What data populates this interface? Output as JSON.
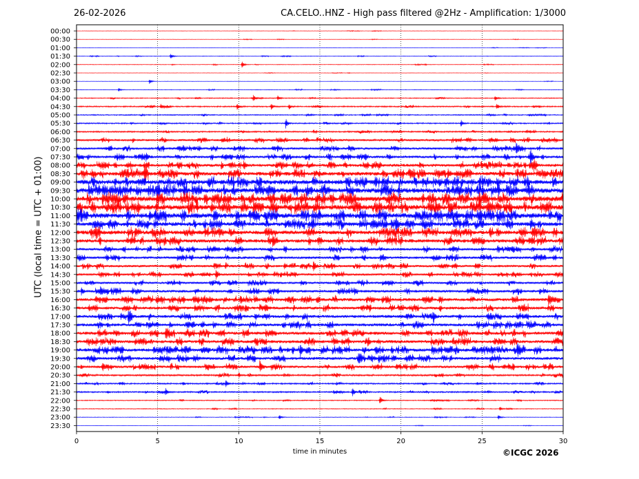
{
  "header": {
    "date": "26-02-2026",
    "title": "CA.CELO..HNZ - High pass filtered @2Hz - Amplification: 1/3000"
  },
  "footer": {
    "copyright": "©ICGC 2026"
  },
  "colors": {
    "trace_a": "#ff0000",
    "trace_b": "#0000ff",
    "frame": "#000000",
    "grid": "#000000"
  },
  "chart_data": {
    "type": "line",
    "chart_kind": "helicorder",
    "xlabel": "time in minutes",
    "ylabel": "UTC (local time = UTC + 01:00)",
    "xlim": [
      0,
      30
    ],
    "xticks": [
      0,
      5,
      10,
      15,
      20,
      25,
      30
    ],
    "x_gridlines": [
      5,
      10,
      15,
      20,
      25
    ],
    "grid": "vertical dotted at x ticks",
    "row_color_cycle": [
      "#ff0000",
      "#ff0000",
      "#0000ff",
      "#0000ff"
    ],
    "rows": [
      "00:00",
      "00:30",
      "01:00",
      "01:30",
      "02:00",
      "02:30",
      "03:00",
      "03:30",
      "04:00",
      "04:30",
      "05:00",
      "05:30",
      "06:00",
      "06:30",
      "07:00",
      "07:30",
      "08:00",
      "08:30",
      "09:00",
      "09:30",
      "10:00",
      "10:30",
      "11:00",
      "11:30",
      "12:00",
      "12:30",
      "13:00",
      "13:30",
      "14:00",
      "14:30",
      "15:00",
      "15:30",
      "16:00",
      "16:30",
      "17:00",
      "17:30",
      "18:00",
      "18:30",
      "19:00",
      "19:30",
      "20:00",
      "20:30",
      "21:00",
      "21:30",
      "22:00",
      "22:30",
      "23:00",
      "23:30"
    ],
    "noise_level": [
      0.2,
      0.2,
      0.2,
      0.3,
      0.3,
      0.2,
      0.2,
      0.3,
      0.5,
      0.7,
      0.6,
      0.7,
      0.8,
      1.2,
      1.3,
      1.5,
      1.7,
      2.2,
      2.6,
      2.8,
      2.9,
      2.8,
      2.9,
      2.3,
      2.3,
      2.0,
      1.5,
      1.5,
      1.4,
      1.3,
      1.3,
      1.5,
      1.8,
      1.7,
      1.7,
      1.7,
      1.8,
      1.8,
      1.9,
      1.7,
      1.5,
      1.0,
      0.8,
      0.8,
      0.5,
      0.4,
      0.3,
      0.2
    ],
    "events": [
      {
        "row": "01:30",
        "minute": 5.8,
        "amplitude": 4
      },
      {
        "row": "02:00",
        "minute": 10.2,
        "amplitude": 5
      },
      {
        "row": "03:00",
        "minute": 4.5,
        "amplitude": 4
      },
      {
        "row": "03:30",
        "minute": 2.6,
        "amplitude": 3
      },
      {
        "row": "04:00",
        "minute": 10.9,
        "amplitude": 4
      },
      {
        "row": "04:00",
        "minute": 12.4,
        "amplitude": 4
      },
      {
        "row": "04:00",
        "minute": 25.8,
        "amplitude": 4
      },
      {
        "row": "04:30",
        "minute": 5.2,
        "amplitude": 4
      },
      {
        "row": "04:30",
        "minute": 9.9,
        "amplitude": 5
      },
      {
        "row": "04:30",
        "minute": 12.0,
        "amplitude": 5
      },
      {
        "row": "04:30",
        "minute": 13.1,
        "amplitude": 4
      },
      {
        "row": "04:30",
        "minute": 25.9,
        "amplitude": 5
      },
      {
        "row": "05:30",
        "minute": 12.9,
        "amplitude": 8
      },
      {
        "row": "05:30",
        "minute": 23.7,
        "amplitude": 5
      },
      {
        "row": "07:00",
        "minute": 27.1,
        "amplitude": 6
      },
      {
        "row": "07:30",
        "minute": 4.3,
        "amplitude": 6
      },
      {
        "row": "07:30",
        "minute": 28.0,
        "amplitude": 14
      },
      {
        "row": "08:00",
        "minute": 10.3,
        "amplitude": 7
      },
      {
        "row": "08:00",
        "minute": 28.2,
        "amplitude": 8
      },
      {
        "row": "08:30",
        "minute": 4.2,
        "amplitude": 14
      },
      {
        "row": "08:30",
        "minute": 22.9,
        "amplitude": 6
      },
      {
        "row": "09:30",
        "minute": 5.0,
        "amplitude": 7
      },
      {
        "row": "10:30",
        "minute": 3.8,
        "amplitude": 6
      },
      {
        "row": "11:00",
        "minute": 4.5,
        "amplitude": 7
      },
      {
        "row": "11:30",
        "minute": 19.7,
        "amplitude": 10
      },
      {
        "row": "12:00",
        "minute": 1.2,
        "amplitude": 7
      },
      {
        "row": "12:00",
        "minute": 28.1,
        "amplitude": 8
      },
      {
        "row": "12:30",
        "minute": 12.1,
        "amplitude": 6
      },
      {
        "row": "14:00",
        "minute": 14.6,
        "amplitude": 9
      },
      {
        "row": "14:30",
        "minute": 8.6,
        "amplitude": 9
      },
      {
        "row": "15:30",
        "minute": 0.3,
        "amplitude": 6
      },
      {
        "row": "15:30",
        "minute": 1.5,
        "amplitude": 7
      },
      {
        "row": "16:00",
        "minute": 29.1,
        "amplitude": 8
      },
      {
        "row": "17:00",
        "minute": 3.2,
        "amplitude": 10
      },
      {
        "row": "17:00",
        "minute": 22.0,
        "amplitude": 7
      },
      {
        "row": "18:00",
        "minute": 5.5,
        "amplitude": 9
      },
      {
        "row": "19:00",
        "minute": 13.8,
        "amplitude": 9
      },
      {
        "row": "19:00",
        "minute": 27.2,
        "amplitude": 9
      },
      {
        "row": "19:30",
        "minute": 17.4,
        "amplitude": 8
      },
      {
        "row": "20:00",
        "minute": 1.6,
        "amplitude": 8
      },
      {
        "row": "20:00",
        "minute": 11.3,
        "amplitude": 10
      },
      {
        "row": "21:00",
        "minute": 9.2,
        "amplitude": 5
      },
      {
        "row": "21:30",
        "minute": 5.5,
        "amplitude": 6
      },
      {
        "row": "21:30",
        "minute": 17.0,
        "amplitude": 8
      },
      {
        "row": "22:00",
        "minute": 18.7,
        "amplitude": 7
      },
      {
        "row": "22:30",
        "minute": 26.1,
        "amplitude": 4
      },
      {
        "row": "23:00",
        "minute": 12.5,
        "amplitude": 4
      },
      {
        "row": "23:00",
        "minute": 26.0,
        "amplitude": 4
      }
    ]
  }
}
